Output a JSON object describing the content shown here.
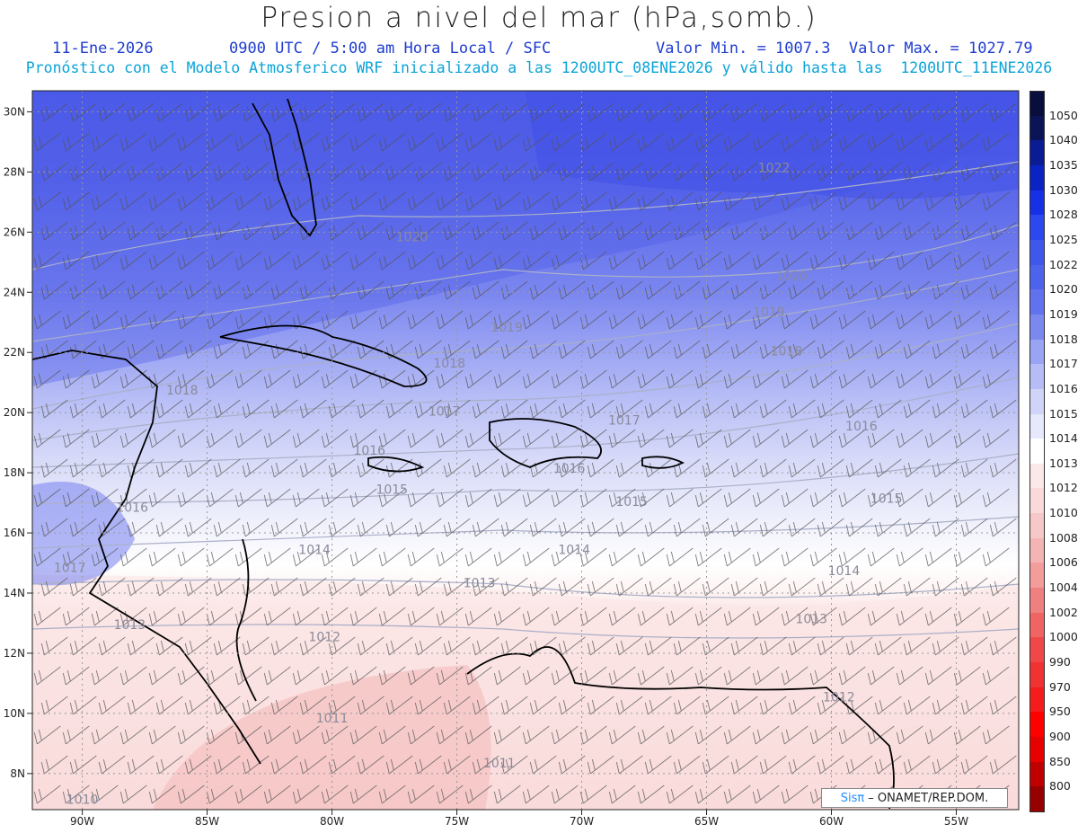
{
  "header": {
    "title": "Presion a nivel del mar (hPa,somb.)",
    "date": "11-Ene-2026",
    "time": "0900 UTC / 5:00 am Hora Local / SFC",
    "minmax": "Valor Min. = 1007.3  Valor Max. = 1027.79",
    "forecast": "Pronóstico con el Modelo Atmosferico WRF inicializado a las 1200UTC_08ENE2026 y válido hasta las  1200UTC_11ENE2026"
  },
  "map": {
    "lon_range": [
      -92,
      -52.5
    ],
    "lat_range": [
      6.8,
      30.7
    ],
    "lon_ticks": [
      {
        "value": -90,
        "label": "90W"
      },
      {
        "value": -85,
        "label": "85W"
      },
      {
        "value": -80,
        "label": "80W"
      },
      {
        "value": -75,
        "label": "75W"
      },
      {
        "value": -70,
        "label": "70W"
      },
      {
        "value": -65,
        "label": "65W"
      },
      {
        "value": -60,
        "label": "60W"
      },
      {
        "value": -55,
        "label": "55W"
      }
    ],
    "lat_ticks": [
      {
        "value": 8,
        "label": "8N"
      },
      {
        "value": 10,
        "label": "10N"
      },
      {
        "value": 12,
        "label": "12N"
      },
      {
        "value": 14,
        "label": "14N"
      },
      {
        "value": 16,
        "label": "16N"
      },
      {
        "value": 18,
        "label": "18N"
      },
      {
        "value": 20,
        "label": "20N"
      },
      {
        "value": 22,
        "label": "22N"
      },
      {
        "value": 24,
        "label": "24N"
      },
      {
        "value": 26,
        "label": "26N"
      },
      {
        "value": 28,
        "label": "28N"
      },
      {
        "value": 30,
        "label": "30N"
      }
    ],
    "contour_labels": [
      {
        "text": "1022",
        "lon": -62.3,
        "lat": 28.0
      },
      {
        "text": "1020",
        "lon": -76.8,
        "lat": 25.7
      },
      {
        "text": "1020",
        "lon": -61.6,
        "lat": 24.4
      },
      {
        "text": "1019",
        "lon": -73.0,
        "lat": 22.7
      },
      {
        "text": "1019",
        "lon": -62.5,
        "lat": 23.2
      },
      {
        "text": "1018",
        "lon": -61.8,
        "lat": 21.9
      },
      {
        "text": "1018",
        "lon": -75.3,
        "lat": 21.5
      },
      {
        "text": "1018",
        "lon": -86.0,
        "lat": 20.6
      },
      {
        "text": "1017",
        "lon": -75.5,
        "lat": 19.9
      },
      {
        "text": "1017",
        "lon": -68.3,
        "lat": 19.6
      },
      {
        "text": "1016",
        "lon": -78.5,
        "lat": 18.6
      },
      {
        "text": "1016",
        "lon": -70.5,
        "lat": 18.0
      },
      {
        "text": "1016",
        "lon": -58.8,
        "lat": 19.4
      },
      {
        "text": "1016",
        "lon": -88.0,
        "lat": 16.7
      },
      {
        "text": "1015",
        "lon": -77.6,
        "lat": 17.3
      },
      {
        "text": "1015",
        "lon": -68.0,
        "lat": 16.9
      },
      {
        "text": "1015",
        "lon": -57.8,
        "lat": 17.0
      },
      {
        "text": "1014",
        "lon": -80.7,
        "lat": 15.3
      },
      {
        "text": "1014",
        "lon": -70.3,
        "lat": 15.3
      },
      {
        "text": "1014",
        "lon": -59.5,
        "lat": 14.6
      },
      {
        "text": "1013",
        "lon": -74.1,
        "lat": 14.2
      },
      {
        "text": "1013",
        "lon": -60.8,
        "lat": 13.0
      },
      {
        "text": "1012",
        "lon": -80.3,
        "lat": 12.4
      },
      {
        "text": "1012",
        "lon": -59.7,
        "lat": 10.4
      },
      {
        "text": "1011",
        "lon": -80.0,
        "lat": 9.7
      },
      {
        "text": "1011",
        "lon": -73.3,
        "lat": 8.2
      },
      {
        "text": "1010",
        "lon": -90.0,
        "lat": 7.0
      },
      {
        "text": "1013",
        "lon": -88.1,
        "lat": 12.8
      },
      {
        "text": "1017",
        "lon": -90.5,
        "lat": 14.7
      }
    ]
  },
  "colorbar": {
    "levels": [
      {
        "label": "1050",
        "color": "#0c1458"
      },
      {
        "label": "1040",
        "color": "#0a1c94"
      },
      {
        "label": "1035",
        "color": "#0a24c4"
      },
      {
        "label": "1030",
        "color": "#1630e6"
      },
      {
        "label": "1028",
        "color": "#2c48ee"
      },
      {
        "label": "1025",
        "color": "#3e58ec"
      },
      {
        "label": "1022",
        "color": "#4c64ec"
      },
      {
        "label": "1020",
        "color": "#6072ee"
      },
      {
        "label": "1019",
        "color": "#7a88f0"
      },
      {
        "label": "1018",
        "color": "#9aa4f4"
      },
      {
        "label": "1017",
        "color": "#b6bcf6"
      },
      {
        "label": "1016",
        "color": "#d0d4f8"
      },
      {
        "label": "1015",
        "color": "#e6e8fb"
      },
      {
        "label": "1014",
        "color": "#ffffff"
      },
      {
        "label": "1013",
        "color": "#fbe9e9"
      },
      {
        "label": "1012",
        "color": "#f8dada"
      },
      {
        "label": "1010",
        "color": "#f6c8c8"
      },
      {
        "label": "1008",
        "color": "#f4b4b4"
      },
      {
        "label": "1006",
        "color": "#f29c9c"
      },
      {
        "label": "1004",
        "color": "#f08080"
      },
      {
        "label": "1002",
        "color": "#f06464"
      },
      {
        "label": "1000",
        "color": "#f04848"
      },
      {
        "label": "990",
        "color": "#f03232"
      },
      {
        "label": "970",
        "color": "#f41c1c"
      },
      {
        "label": "950",
        "color": "#ff0000"
      },
      {
        "label": "900",
        "color": "#e60000"
      },
      {
        "label": "850",
        "color": "#c00000"
      },
      {
        "label": "800",
        "color": "#960000"
      }
    ],
    "top_color": "#0a0e3c"
  },
  "logo": {
    "brand": "Sisπ",
    "text": "– ONAMET/REP.DOM."
  }
}
